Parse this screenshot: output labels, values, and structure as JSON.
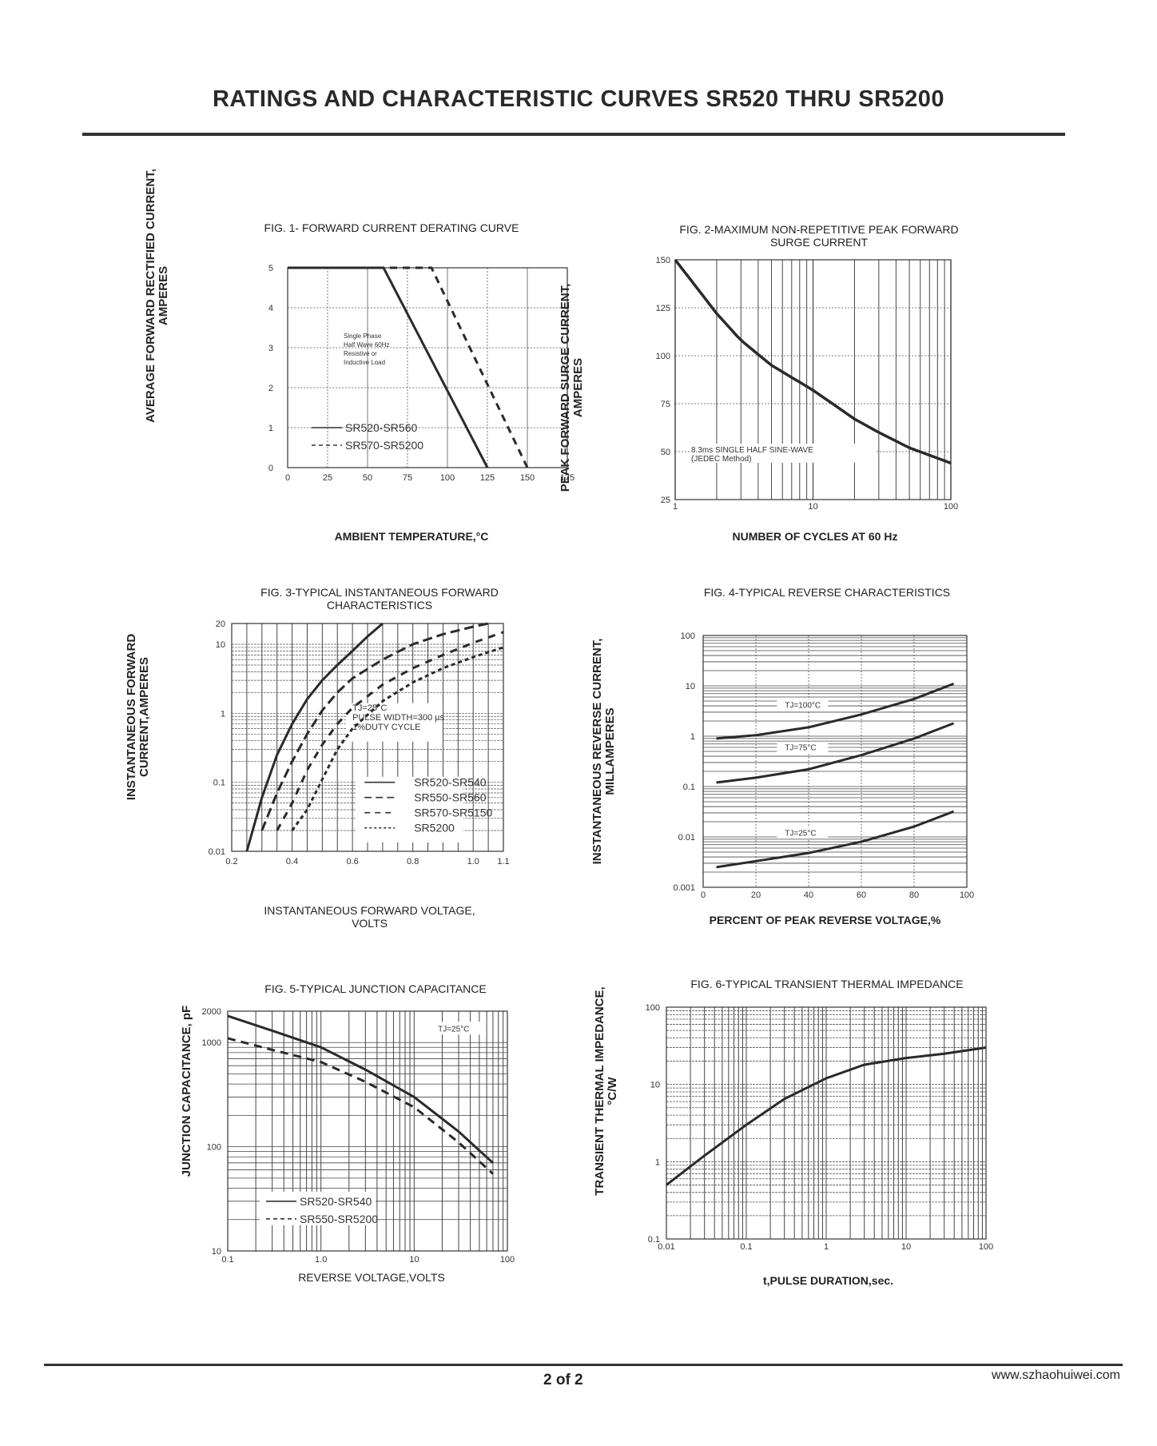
{
  "header": {
    "title": "RATINGS AND CHARACTERISTIC CURVES SR520 THRU SR5200"
  },
  "footer": {
    "page": "2 of  2",
    "url": "www.szhaohuiwei.com"
  },
  "chart_data": [
    {
      "id": "fig1",
      "type": "line",
      "title": "FIG. 1- FORWARD CURRENT DERATING CURVE",
      "xlabel": "AMBIENT TEMPERATURE,°C",
      "ylabel": [
        "AVERAGE FORWARD RECTIFIED CURRENT,",
        "AMPERES"
      ],
      "xlim": [
        0,
        175
      ],
      "ylim": [
        0,
        5
      ],
      "xticks": [
        "0",
        "25",
        "50",
        "75",
        "100",
        "125",
        "150",
        "175"
      ],
      "yticks": [
        "0",
        "1",
        "2",
        "3",
        "4",
        "5"
      ],
      "annotation": [
        "Single Phase",
        "Half Wave 60Hz",
        "Resistive or",
        "Inductive Load"
      ],
      "series": [
        {
          "name": "SR520-SR560",
          "dash": false,
          "points": [
            [
              0,
              5
            ],
            [
              60,
              5
            ],
            [
              125,
              0
            ]
          ]
        },
        {
          "name": "SR570-SR5200",
          "dash": true,
          "points": [
            [
              0,
              5
            ],
            [
              90,
              5
            ],
            [
              150,
              0
            ]
          ]
        }
      ]
    },
    {
      "id": "fig2",
      "type": "line",
      "title": [
        "FIG. 2-MAXIMUM NON-REPETITIVE PEAK FORWARD",
        "SURGE CURRENT"
      ],
      "xlabel": "NUMBER OF CYCLES AT 60 Hz",
      "ylabel": [
        "PEAK  FORWARD SURGE CURRENT,",
        "AMPERES"
      ],
      "xscale": "log",
      "xlim": [
        1,
        100
      ],
      "ylim": [
        25,
        150
      ],
      "xticks": [
        "1",
        "10",
        "100"
      ],
      "yticks": [
        "25",
        "50",
        "75",
        "100",
        "125",
        "150"
      ],
      "annotation": [
        "8.3ms SINGLE HALF SINE-WAVE",
        "(JEDEC Method)"
      ],
      "series": [
        {
          "name": "",
          "dash": false,
          "points": [
            [
              1,
              150
            ],
            [
              2,
              122
            ],
            [
              3,
              108
            ],
            [
              5,
              95
            ],
            [
              10,
              82
            ],
            [
              20,
              67
            ],
            [
              30,
              60
            ],
            [
              50,
              52
            ],
            [
              100,
              44
            ]
          ]
        }
      ]
    },
    {
      "id": "fig3",
      "type": "line",
      "title": [
        "FIG. 3-TYPICAL INSTANTANEOUS FORWARD",
        "CHARACTERISTICS"
      ],
      "xlabel": [
        "INSTANTANEOUS FORWARD VOLTAGE,",
        "VOLTS"
      ],
      "ylabel": [
        "INSTANTANEOUS FORWARD",
        "CURRENT,AMPERES"
      ],
      "yscale": "log",
      "xlim": [
        0.2,
        1.1
      ],
      "ylim": [
        0.01,
        20
      ],
      "xticks": [
        "0.2",
        "0.4",
        "0.6",
        "0.8",
        "1.0",
        "1.1"
      ],
      "yticks": [
        "0.01",
        "0.1",
        "1",
        "10",
        "20"
      ],
      "annotation": [
        "TJ=25°C",
        "PULSE WIDTH=300 µs",
        "1%DUTY CYCLE"
      ],
      "series": [
        {
          "name": "SR520-SR540",
          "dash": "solid",
          "points": [
            [
              0.25,
              0.01
            ],
            [
              0.3,
              0.06
            ],
            [
              0.35,
              0.25
            ],
            [
              0.4,
              0.7
            ],
            [
              0.45,
              1.6
            ],
            [
              0.5,
              3
            ],
            [
              0.55,
              5
            ],
            [
              0.6,
              8
            ],
            [
              0.65,
              13
            ],
            [
              0.7,
              20
            ]
          ]
        },
        {
          "name": "SR550-SR560",
          "dash": "long",
          "points": [
            [
              0.3,
              0.02
            ],
            [
              0.35,
              0.07
            ],
            [
              0.4,
              0.2
            ],
            [
              0.45,
              0.5
            ],
            [
              0.5,
              1.1
            ],
            [
              0.55,
              2
            ],
            [
              0.6,
              3.2
            ],
            [
              0.7,
              6
            ],
            [
              0.8,
              10
            ],
            [
              0.9,
              14
            ],
            [
              1.0,
              18
            ],
            [
              1.05,
              20
            ]
          ]
        },
        {
          "name": "SR570-SR5150",
          "dash": "medium",
          "points": [
            [
              0.35,
              0.02
            ],
            [
              0.4,
              0.05
            ],
            [
              0.45,
              0.15
            ],
            [
              0.5,
              0.35
            ],
            [
              0.55,
              0.7
            ],
            [
              0.6,
              1.2
            ],
            [
              0.7,
              2.6
            ],
            [
              0.8,
              4.5
            ],
            [
              0.9,
              7
            ],
            [
              1.0,
              10.5
            ],
            [
              1.1,
              15
            ]
          ]
        },
        {
          "name": "SR5200",
          "dash": "short",
          "points": [
            [
              0.4,
              0.02
            ],
            [
              0.45,
              0.04
            ],
            [
              0.5,
              0.11
            ],
            [
              0.55,
              0.3
            ],
            [
              0.6,
              0.6
            ],
            [
              0.7,
              1.5
            ],
            [
              0.8,
              2.8
            ],
            [
              0.9,
              4.5
            ],
            [
              1.0,
              6.5
            ],
            [
              1.1,
              9
            ]
          ]
        }
      ]
    },
    {
      "id": "fig4",
      "type": "line",
      "title": "FIG. 4-TYPICAL REVERSE CHARACTERISTICS",
      "xlabel": "PERCENT OF PEAK REVERSE VOLTAGE,%",
      "ylabel": [
        "INSTANTANEOUS REVERSE CURRENT,",
        "MILLAMPERES"
      ],
      "yscale": "log",
      "xlim": [
        0,
        100
      ],
      "ylim": [
        0.001,
        100
      ],
      "xticks": [
        "0",
        "20",
        "40",
        "60",
        "80",
        "100"
      ],
      "yticks": [
        "0.001",
        "0.01",
        "0.1",
        "1",
        "10",
        "100"
      ],
      "series": [
        {
          "name": "TJ=100°C",
          "dash": false,
          "points": [
            [
              5,
              0.9
            ],
            [
              20,
              1.05
            ],
            [
              40,
              1.5
            ],
            [
              60,
              2.7
            ],
            [
              80,
              5.5
            ],
            [
              95,
              11
            ]
          ]
        },
        {
          "name": "TJ=75°C",
          "dash": false,
          "points": [
            [
              5,
              0.12
            ],
            [
              20,
              0.15
            ],
            [
              40,
              0.22
            ],
            [
              60,
              0.42
            ],
            [
              80,
              0.9
            ],
            [
              95,
              1.8
            ]
          ]
        },
        {
          "name": "TJ=25°C",
          "dash": false,
          "points": [
            [
              5,
              0.0025
            ],
            [
              20,
              0.0033
            ],
            [
              40,
              0.0048
            ],
            [
              60,
              0.008
            ],
            [
              80,
              0.016
            ],
            [
              95,
              0.032
            ]
          ]
        }
      ]
    },
    {
      "id": "fig5",
      "type": "line",
      "title": "FIG. 5-TYPICAL JUNCTION CAPACITANCE",
      "xlabel": "REVERSE VOLTAGE,VOLTS",
      "ylabel": "JUNCTION CAPACITANCE, pF",
      "xscale": "log",
      "yscale": "log",
      "xlim": [
        0.1,
        100
      ],
      "ylim": [
        10,
        2000
      ],
      "xticks": [
        "0.1",
        "1.0",
        "10",
        "100"
      ],
      "yticks": [
        "10",
        "100",
        "1000",
        "2000"
      ],
      "annotation": "TJ=25°C",
      "series": [
        {
          "name": "SR520-SR540",
          "dash": false,
          "points": [
            [
              0.1,
              1800
            ],
            [
              0.3,
              1300
            ],
            [
              1,
              900
            ],
            [
              3,
              550
            ],
            [
              10,
              300
            ],
            [
              30,
              140
            ],
            [
              70,
              70
            ]
          ]
        },
        {
          "name": "SR550-SR5200",
          "dash": true,
          "points": [
            [
              0.1,
              1100
            ],
            [
              0.3,
              850
            ],
            [
              1,
              650
            ],
            [
              3,
              420
            ],
            [
              10,
              240
            ],
            [
              30,
              110
            ],
            [
              70,
              55
            ]
          ]
        }
      ]
    },
    {
      "id": "fig6",
      "type": "line",
      "title": "FIG. 6-TYPICAL TRANSIENT THERMAL IMPEDANCE",
      "xlabel": "t,PULSE DURATION,sec.",
      "ylabel": [
        "TRANSIENT THERMAL IMPEDANCE,",
        "°C/W"
      ],
      "xscale": "log",
      "yscale": "log",
      "xlim": [
        0.01,
        100
      ],
      "ylim": [
        0.1,
        100
      ],
      "xticks": [
        "0.01",
        "0.1",
        "1",
        "10",
        "100"
      ],
      "yticks": [
        "0.1",
        "1",
        "10",
        "100"
      ],
      "series": [
        {
          "name": "",
          "dash": false,
          "points": [
            [
              0.01,
              0.5
            ],
            [
              0.03,
              1.2
            ],
            [
              0.1,
              3
            ],
            [
              0.3,
              6.5
            ],
            [
              1,
              12
            ],
            [
              3,
              18
            ],
            [
              10,
              22
            ],
            [
              30,
              25
            ],
            [
              100,
              30
            ]
          ]
        }
      ]
    }
  ]
}
